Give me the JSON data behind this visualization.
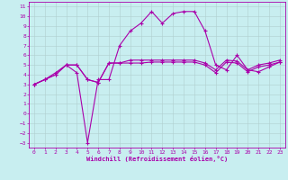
{
  "xlabel": "Windchill (Refroidissement éolien,°C)",
  "xlim": [
    -0.5,
    23.5
  ],
  "ylim": [
    -3.5,
    11.5
  ],
  "xticks": [
    0,
    1,
    2,
    3,
    4,
    5,
    6,
    7,
    8,
    9,
    10,
    11,
    12,
    13,
    14,
    15,
    16,
    17,
    18,
    19,
    20,
    21,
    22,
    23
  ],
  "yticks": [
    -3,
    -2,
    -1,
    0,
    1,
    2,
    3,
    4,
    5,
    6,
    7,
    8,
    9,
    10,
    11
  ],
  "background_color": "#c8eef0",
  "grid_color": "#b0cece",
  "line_color": "#aa00aa",
  "line1_x": [
    0,
    1,
    2,
    3,
    4,
    5,
    6,
    7,
    8,
    9,
    10,
    11,
    12,
    13,
    14,
    15,
    16,
    17,
    18,
    19,
    20,
    21,
    22,
    23
  ],
  "line1_y": [
    3.0,
    3.5,
    4.0,
    5.0,
    5.0,
    3.5,
    3.2,
    5.2,
    5.2,
    5.2,
    5.2,
    5.3,
    5.3,
    5.3,
    5.3,
    5.3,
    5.0,
    4.2,
    5.3,
    5.2,
    4.3,
    4.8,
    5.0,
    5.3
  ],
  "line2_x": [
    0,
    1,
    2,
    3,
    4,
    5,
    6,
    7,
    8,
    9,
    10,
    11,
    12,
    13,
    14,
    15,
    16,
    17,
    18,
    19,
    20,
    21,
    22,
    23
  ],
  "line2_y": [
    3.0,
    3.5,
    4.0,
    5.0,
    5.0,
    3.5,
    3.2,
    5.2,
    5.2,
    5.5,
    5.5,
    5.5,
    5.5,
    5.5,
    5.5,
    5.5,
    5.2,
    4.5,
    5.5,
    5.4,
    4.5,
    5.0,
    5.2,
    5.5
  ],
  "line3_x": [
    0,
    1,
    2,
    3,
    4,
    5,
    6,
    7,
    8,
    9,
    10,
    11,
    12,
    13,
    14,
    15,
    16,
    17,
    18,
    19,
    20,
    21,
    22,
    23
  ],
  "line3_y": [
    3.0,
    3.5,
    4.2,
    5.0,
    4.2,
    -3.0,
    3.5,
    3.5,
    7.0,
    8.5,
    9.3,
    10.5,
    9.3,
    10.3,
    10.5,
    10.5,
    8.5,
    5.0,
    4.5,
    6.0,
    4.5,
    4.3,
    4.8,
    5.3
  ],
  "marker": "+",
  "marker_size": 3,
  "linewidth": 0.8,
  "tick_fontsize": 4.5,
  "xlabel_fontsize": 5.0
}
